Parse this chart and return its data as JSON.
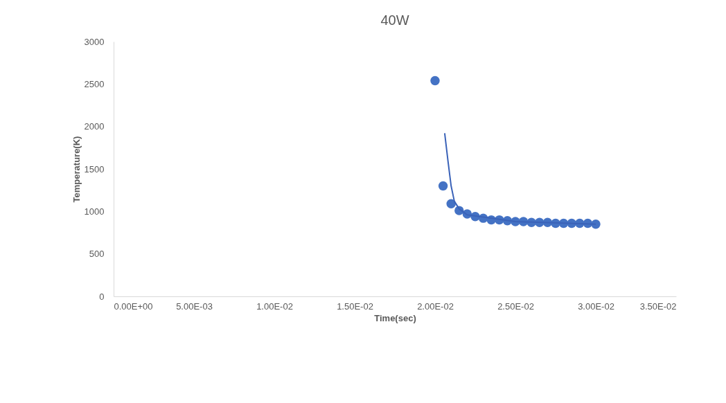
{
  "chart_data": {
    "type": "scatter",
    "title": "40W",
    "xlabel": "Time(sec)",
    "ylabel": "Temperature(K)",
    "xlim": [
      0,
      0.035
    ],
    "ylim": [
      0,
      3000
    ],
    "xticks": [
      {
        "value": 0,
        "label": "0.00E+00"
      },
      {
        "value": 0.005,
        "label": "5.00E-03"
      },
      {
        "value": 0.01,
        "label": "1.00E-02"
      },
      {
        "value": 0.015,
        "label": "1.50E-02"
      },
      {
        "value": 0.02,
        "label": "2.00E-02"
      },
      {
        "value": 0.025,
        "label": "2.50E-02"
      },
      {
        "value": 0.03,
        "label": "3.00E-02"
      },
      {
        "value": 0.035,
        "label": "3.50E-02"
      }
    ],
    "yticks": [
      0,
      500,
      1000,
      1500,
      2000,
      2500,
      3000
    ],
    "grid": false,
    "series": [
      {
        "color": "#4472c4",
        "marker": "circle",
        "x": [
          0.02,
          0.0205,
          0.021,
          0.0215,
          0.022,
          0.0225,
          0.023,
          0.0235,
          0.024,
          0.0245,
          0.025,
          0.0255,
          0.026,
          0.0265,
          0.027,
          0.0275,
          0.028,
          0.0285,
          0.029,
          0.0295,
          0.03
        ],
        "values": [
          2540,
          1300,
          1090,
          1010,
          970,
          940,
          920,
          900,
          900,
          890,
          880,
          880,
          870,
          870,
          870,
          860,
          860,
          860,
          860,
          860,
          850
        ]
      },
      {
        "type": "line",
        "color": "#3a62b8",
        "marker": "none",
        "x": [
          0.0206,
          0.0208,
          0.021,
          0.0212,
          0.0215,
          0.022,
          0.025,
          0.03
        ],
        "values": [
          1920,
          1600,
          1300,
          1120,
          1030,
          960,
          880,
          850
        ]
      }
    ]
  }
}
